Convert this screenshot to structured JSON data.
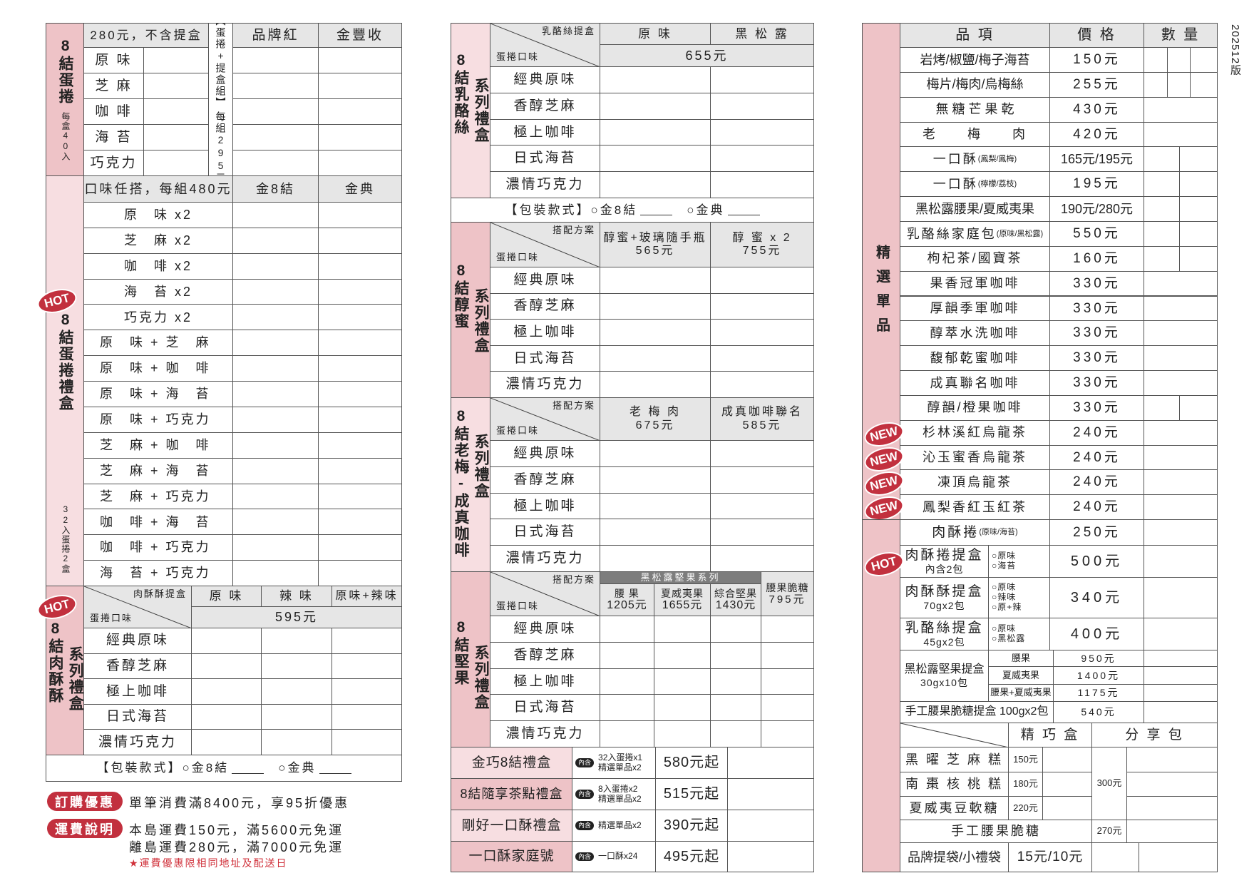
{
  "version": "202512版",
  "flavors": [
    "經典原味",
    "香醇芝麻",
    "極上咖啡",
    "日式海苔",
    "濃情巧克力"
  ],
  "package": {
    "label": "【包裝款式】",
    "opt1": "○金8結",
    "opt2": "○金典"
  },
  "left": {
    "egg_roll": {
      "side": "8結蛋捲",
      "side_note": "每盒40入",
      "header_price": "280元，不含提盒",
      "flavors": [
        "原 味",
        "芝 麻",
        "咖 啡",
        "海 苔",
        "巧克力"
      ],
      "set_label": "【蛋捲+提盒組】",
      "set_price": "每組295元",
      "cols": [
        "品牌紅",
        "金豐收"
      ]
    },
    "gift_box": {
      "side": "8結蛋捲禮盒",
      "side_note": "32入蛋捲2盒",
      "badge": "HOT",
      "header": "口味任搭，每組480元",
      "cols": [
        "金8結",
        "金典"
      ],
      "combos": [
        "原　味 x2",
        "芝　麻 x2",
        "咖　啡 x2",
        "海　苔 x2",
        "巧克力 x2",
        "原　味 + 芝　麻",
        "原　味 + 咖　啡",
        "原　味 + 海　苔",
        "原　味 + 巧克力",
        "芝　麻 + 咖　啡",
        "芝　麻 + 海　苔",
        "芝　麻 + 巧克力",
        "咖　啡 + 海　苔",
        "咖　啡 + 巧克力",
        "海　苔 + 巧克力"
      ]
    },
    "pork_floss": {
      "side": "8結肉酥酥",
      "side2": "系列禮盒",
      "badge": "HOT",
      "corner_top": "肉酥酥提盒",
      "corner_bottom": "蛋捲口味",
      "cols": [
        "原 味",
        "辣 味",
        "原味+辣味"
      ],
      "price": "595元"
    },
    "promo": {
      "badge": "訂購優惠",
      "text": "單筆消費滿8400元，享95折優惠"
    },
    "shipping": {
      "badge": "運費說明",
      "line1": "本島運費150元，滿5600元免運",
      "line2": "離島運費280元，滿7000元免運",
      "note": "★運費優惠限相同地址及配送日"
    }
  },
  "middle": {
    "cheese": {
      "side": "8結乳酪絲",
      "side2": "系列禮盒",
      "corner_top": "乳酪絲提盒",
      "corner_bottom": "蛋捲口味",
      "cols": [
        "原 味",
        "黑 松 露"
      ],
      "price": "655元"
    },
    "honey": {
      "side": "8結醇蜜",
      "side2": "系列禮盒",
      "corner_top": "搭配方案",
      "corner_bottom": "蛋捲口味",
      "cols": [
        {
          "name": "醇蜜+玻璃隨手瓶",
          "price": "565元"
        },
        {
          "name": "醇 蜜 x 2",
          "price": "755元"
        }
      ]
    },
    "plum": {
      "side": "8結老梅-成真咖啡",
      "side2": "系列禮盒",
      "corner_top": "搭配方案",
      "corner_bottom": "蛋捲口味",
      "cols": [
        {
          "name": "老 梅 肉",
          "price": "675元"
        },
        {
          "name": "成真咖啡聯名",
          "price": "585元"
        }
      ]
    },
    "nut": {
      "side": "8結堅果",
      "side2": "系列禮盒",
      "corner_top": "搭配方案",
      "corner_bottom": "蛋捲口味",
      "group": "黑松露堅果系列",
      "cols": [
        {
          "name": "腰 果",
          "price": "1205元"
        },
        {
          "name": "夏威夷果",
          "price": "1655元"
        },
        {
          "name": "綜合堅果",
          "price": "1430元"
        }
      ],
      "extra": {
        "name": "腰果脆糖",
        "price": "795元"
      }
    },
    "gift_sets": [
      {
        "name": "金巧8結禮盒",
        "tag": "內含",
        "contents": [
          "32入蛋捲x1",
          "精選單品x2"
        ],
        "price": "580元起"
      },
      {
        "name": "8結隨享茶點禮盒",
        "tag": "內含",
        "contents": [
          "8入蛋捲x2",
          "精選單品x2"
        ],
        "price": "515元起"
      },
      {
        "name": "剛好一口酥禮盒",
        "tag": "內含",
        "contents": [
          "精選單品x2"
        ],
        "price": "390元起"
      },
      {
        "name": "一口酥家庭號",
        "tag": "內含",
        "contents": [
          "一口酥x24"
        ],
        "price": "495元起"
      }
    ]
  },
  "right": {
    "headers": [
      "品 項",
      "價 格",
      "數 量"
    ],
    "side": "精選單品",
    "items": [
      {
        "name": "岩烤/椒鹽/梅子海苔",
        "sub": "",
        "price": "150元"
      },
      {
        "name": "梅片/梅肉/烏梅絲",
        "sub": "",
        "price": "255元"
      },
      {
        "name": "無 糖 芒 果 乾",
        "sub": "",
        "price": "430元"
      },
      {
        "name": "老　　梅　　肉",
        "sub": "",
        "price": "420元"
      },
      {
        "name": "一口酥",
        "sub": "(鳳梨/鳳梅)",
        "price": "165元/195元"
      },
      {
        "name": "一口酥",
        "sub": "(檸檬/荔枝)",
        "price": "195元"
      },
      {
        "name": "黑松露腰果/夏威夷果",
        "sub": "",
        "price": "190元/280元"
      },
      {
        "name": "乳酪絲家庭包",
        "sub": "(原味/黑松露)",
        "price": "550元"
      },
      {
        "name": "枸杞茶/國寶茶",
        "sub": "",
        "price": "160元"
      },
      {
        "name": "果香冠軍咖啡",
        "sub": "",
        "price": "330元"
      },
      {
        "name": "厚韻季軍咖啡",
        "sub": "",
        "price": "330元"
      },
      {
        "name": "醇萃水洗咖啡",
        "sub": "",
        "price": "330元"
      },
      {
        "name": "馥郁乾蜜咖啡",
        "sub": "",
        "price": "330元"
      },
      {
        "name": "成真聯名咖啡",
        "sub": "",
        "price": "330元"
      },
      {
        "name": "醇韻/橙果咖啡",
        "sub": "",
        "price": "330元"
      },
      {
        "name": "杉林溪紅烏龍茶",
        "sub": "",
        "price": "240元",
        "badge": "NEW"
      },
      {
        "name": "沁玉蜜香烏龍茶",
        "sub": "",
        "price": "240元",
        "badge": "NEW"
      },
      {
        "name": "凍頂烏龍茶",
        "sub": "",
        "price": "240元",
        "badge": "NEW"
      },
      {
        "name": "鳳梨香紅玉紅茶",
        "sub": "",
        "price": "240元",
        "badge": "NEW"
      }
    ],
    "pork_roll": {
      "name": "肉酥捲",
      "sub": "(原味/海苔)",
      "price": "250元"
    },
    "boxes": [
      {
        "name": "肉酥捲提盒",
        "sub": "內含2包",
        "options": [
          "○原味",
          "○海苔"
        ],
        "price": "500元",
        "badge": "HOT"
      },
      {
        "name": "肉酥酥提盒",
        "sub": "70gx2包",
        "options": [
          "○原味",
          "○辣味",
          "○原+辣"
        ],
        "price": "340元"
      },
      {
        "name": "乳酪絲提盒",
        "sub": "45gx2包",
        "options": [
          "○原味",
          "○黑松露"
        ],
        "price": "400元"
      }
    ],
    "nut_box": {
      "name": "黑松露堅果提盒",
      "sub": "30gx10包",
      "variants": [
        {
          "name": "腰果",
          "price": "950元"
        },
        {
          "name": "夏威夷果",
          "price": "1400元"
        },
        {
          "name": "腰果+夏威夷果",
          "price": "1175元"
        }
      ]
    },
    "brittle_box": {
      "name": "手工腰果脆糖提盒 100gx2包",
      "price": "540元"
    },
    "snacks": {
      "cols": [
        "精 巧 盒",
        "分 享 包"
      ],
      "share_price": "300元",
      "items": [
        {
          "name": "黑 曜 芝 麻 糕",
          "price": "150元"
        },
        {
          "name": "南 棗 核 桃 糕",
          "price": "180元"
        },
        {
          "name": "夏威夷豆軟糖",
          "price": "220元"
        }
      ]
    },
    "brittle": {
      "name": "手工腰果脆糖",
      "price": "270元"
    },
    "bags": {
      "name": "品牌提袋/小禮袋",
      "price": "15元/10元"
    }
  },
  "colors": {
    "pink_dark": "#eec3c7",
    "pink_light": "#f7dee1",
    "header_gray": "#e6e6e6",
    "badge_red": "#c2303e"
  }
}
